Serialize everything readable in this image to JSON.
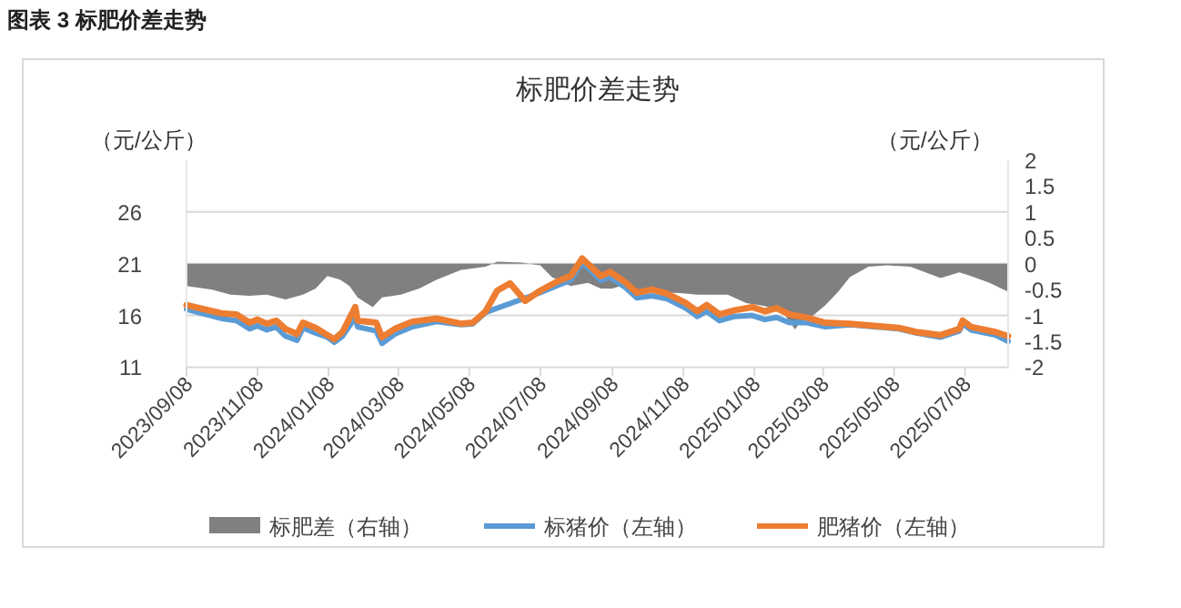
{
  "chart_data": {
    "type": "line",
    "title": "标肥价差走势",
    "annotations": [
      "图表 3  标肥价差走势"
    ],
    "ylabel": "（元/公斤）",
    "y2label": "（元/公斤）",
    "xlim": [
      "2023-09-08",
      "2025-08-14"
    ],
    "xticks": [
      {
        "value": "2023-09-08",
        "label": "2023/09/08"
      },
      {
        "value": "2023-11-08",
        "label": "2023/11/08"
      },
      {
        "value": "2024-01-08",
        "label": "2024/01/08"
      },
      {
        "value": "2024-03-08",
        "label": "2024/03/08"
      },
      {
        "value": "2024-05-08",
        "label": "2024/05/08"
      },
      {
        "value": "2024-07-08",
        "label": "2024/07/08"
      },
      {
        "value": "2024-09-08",
        "label": "2024/09/08"
      },
      {
        "value": "2024-11-08",
        "label": "2024/11/08"
      },
      {
        "value": "2025-01-08",
        "label": "2025/01/08"
      },
      {
        "value": "2025-03-08",
        "label": "2025/03/08"
      },
      {
        "value": "2025-05-08",
        "label": "2025/05/08"
      },
      {
        "value": "2025-07-08",
        "label": "2025/07/08"
      }
    ],
    "ylim": [
      11,
      31
    ],
    "yticks": [
      11,
      16,
      21,
      26
    ],
    "y2lim": [
      -2,
      2
    ],
    "y2ticks": [
      -2,
      -1.5,
      -1,
      -0.5,
      0,
      0.5,
      1,
      1.5,
      2
    ],
    "grid": "y",
    "legend": "bottom",
    "series": [
      {
        "name": "标肥差（右轴）",
        "type": "area",
        "axis": "y2",
        "color": "#808080",
        "x": [
          "2023-09-08",
          "2023-09-30",
          "2023-10-16",
          "2023-11-01",
          "2023-11-16",
          "2023-12-02",
          "2023-12-17",
          "2023-12-28",
          "2024-01-07",
          "2024-01-18",
          "2024-01-26",
          "2024-02-02",
          "2024-02-15",
          "2024-02-23",
          "2024-03-10",
          "2024-03-26",
          "2024-04-10",
          "2024-05-01",
          "2024-05-22",
          "2024-06-01",
          "2024-06-22",
          "2024-07-08",
          "2024-07-18",
          "2024-08-03",
          "2024-08-18",
          "2024-08-29",
          "2024-09-08",
          "2024-09-19",
          "2024-10-04",
          "2024-10-15",
          "2024-11-05",
          "2024-11-20",
          "2024-12-16",
          "2025-01-01",
          "2025-01-17",
          "2025-02-01",
          "2025-02-12",
          "2025-02-17",
          "2025-02-28",
          "2025-03-10",
          "2025-03-21",
          "2025-03-31",
          "2025-04-16",
          "2025-05-02",
          "2025-05-22",
          "2025-06-04",
          "2025-06-17",
          "2025-07-03",
          "2025-07-13",
          "2025-07-29",
          "2025-08-14"
        ],
        "values": [
          -0.43,
          -0.5,
          -0.6,
          -0.62,
          -0.6,
          -0.69,
          -0.6,
          -0.48,
          -0.24,
          -0.31,
          -0.43,
          -0.65,
          -0.84,
          -0.65,
          -0.6,
          -0.48,
          -0.31,
          -0.12,
          -0.06,
          0.04,
          0.02,
          -0.03,
          -0.26,
          -0.43,
          -0.37,
          -0.48,
          -0.48,
          -0.4,
          -0.55,
          -0.55,
          -0.57,
          -0.6,
          -0.6,
          -0.76,
          -0.82,
          -0.93,
          -1.27,
          -1.1,
          -0.99,
          -0.8,
          -0.54,
          -0.26,
          -0.06,
          -0.03,
          -0.06,
          -0.17,
          -0.28,
          -0.17,
          -0.24,
          -0.37,
          -0.54
        ]
      },
      {
        "name": "标猪价（左轴）",
        "color": "#5b9bd5",
        "x": [
          "2023-09-08",
          "2023-10-08",
          "2023-10-21",
          "2023-11-01",
          "2023-11-08",
          "2023-11-16",
          "2023-11-24",
          "2023-12-02",
          "2023-12-12",
          "2023-12-17",
          "2023-12-28",
          "2024-01-07",
          "2024-01-13",
          "2024-01-20",
          "2024-01-31",
          "2024-02-02",
          "2024-02-18",
          "2024-02-23",
          "2024-03-05",
          "2024-03-20",
          "2024-04-10",
          "2024-05-01",
          "2024-05-11",
          "2024-05-22",
          "2024-07-08",
          "2024-07-23",
          "2024-08-03",
          "2024-08-13",
          "2024-08-29",
          "2024-09-06",
          "2024-09-19",
          "2024-09-29",
          "2024-10-12",
          "2024-10-25",
          "2024-11-10",
          "2024-11-20",
          "2024-11-28",
          "2024-12-09",
          "2024-12-22",
          "2025-01-06",
          "2025-01-17",
          "2025-01-27",
          "2025-02-07",
          "2025-02-22",
          "2025-03-10",
          "2025-03-31",
          "2025-05-12",
          "2025-05-27",
          "2025-06-17",
          "2025-07-03",
          "2025-07-06",
          "2025-07-13",
          "2025-08-03",
          "2025-08-14"
        ],
        "values": [
          16.6,
          15.7,
          15.5,
          14.7,
          15.0,
          14.6,
          14.9,
          14.0,
          13.6,
          14.8,
          14.3,
          13.9,
          13.4,
          14.0,
          15.8,
          14.9,
          14.5,
          13.3,
          14.2,
          14.9,
          15.4,
          15.1,
          15.2,
          16.3,
          18.2,
          18.9,
          19.4,
          21.1,
          19.4,
          19.7,
          18.7,
          17.7,
          17.9,
          17.6,
          16.7,
          15.9,
          16.4,
          15.5,
          15.9,
          16.0,
          15.6,
          15.8,
          15.3,
          15.3,
          14.9,
          15.1,
          14.7,
          14.3,
          13.9,
          14.5,
          15.2,
          14.6,
          14.1,
          13.5
        ]
      },
      {
        "name": "肥猪价（左轴）",
        "color": "#ed7d31",
        "x": [
          "2023-09-08",
          "2023-10-08",
          "2023-10-21",
          "2023-11-01",
          "2023-11-08",
          "2023-11-16",
          "2023-11-24",
          "2023-12-02",
          "2023-12-12",
          "2023-12-17",
          "2023-12-28",
          "2024-01-07",
          "2024-01-13",
          "2024-01-20",
          "2024-01-31",
          "2024-02-02",
          "2024-02-18",
          "2024-02-23",
          "2024-03-05",
          "2024-03-20",
          "2024-04-10",
          "2024-05-01",
          "2024-05-11",
          "2024-05-22",
          "2024-06-01",
          "2024-06-12",
          "2024-06-25",
          "2024-07-08",
          "2024-07-23",
          "2024-08-03",
          "2024-08-13",
          "2024-08-29",
          "2024-09-06",
          "2024-09-19",
          "2024-09-29",
          "2024-10-12",
          "2024-10-25",
          "2024-11-10",
          "2024-11-20",
          "2024-11-28",
          "2024-12-09",
          "2024-12-22",
          "2025-01-06",
          "2025-01-17",
          "2025-01-27",
          "2025-02-07",
          "2025-02-22",
          "2025-03-10",
          "2025-03-31",
          "2025-04-21",
          "2025-05-12",
          "2025-05-27",
          "2025-06-17",
          "2025-07-03",
          "2025-07-06",
          "2025-07-13",
          "2025-08-03",
          "2025-08-14"
        ],
        "values": [
          17.0,
          16.2,
          16.1,
          15.3,
          15.6,
          15.2,
          15.5,
          14.7,
          14.2,
          15.3,
          14.8,
          14.1,
          13.7,
          14.4,
          16.8,
          15.5,
          15.3,
          13.9,
          14.7,
          15.4,
          15.7,
          15.2,
          15.3,
          16.4,
          18.4,
          19.1,
          17.4,
          18.4,
          19.3,
          19.8,
          21.5,
          19.8,
          20.2,
          19.2,
          18.2,
          18.5,
          18.1,
          17.2,
          16.4,
          17.0,
          16.1,
          16.5,
          16.8,
          16.4,
          16.7,
          16.1,
          15.8,
          15.3,
          15.2,
          15.0,
          14.8,
          14.4,
          14.1,
          14.7,
          15.5,
          14.9,
          14.4,
          14.0
        ]
      }
    ]
  }
}
